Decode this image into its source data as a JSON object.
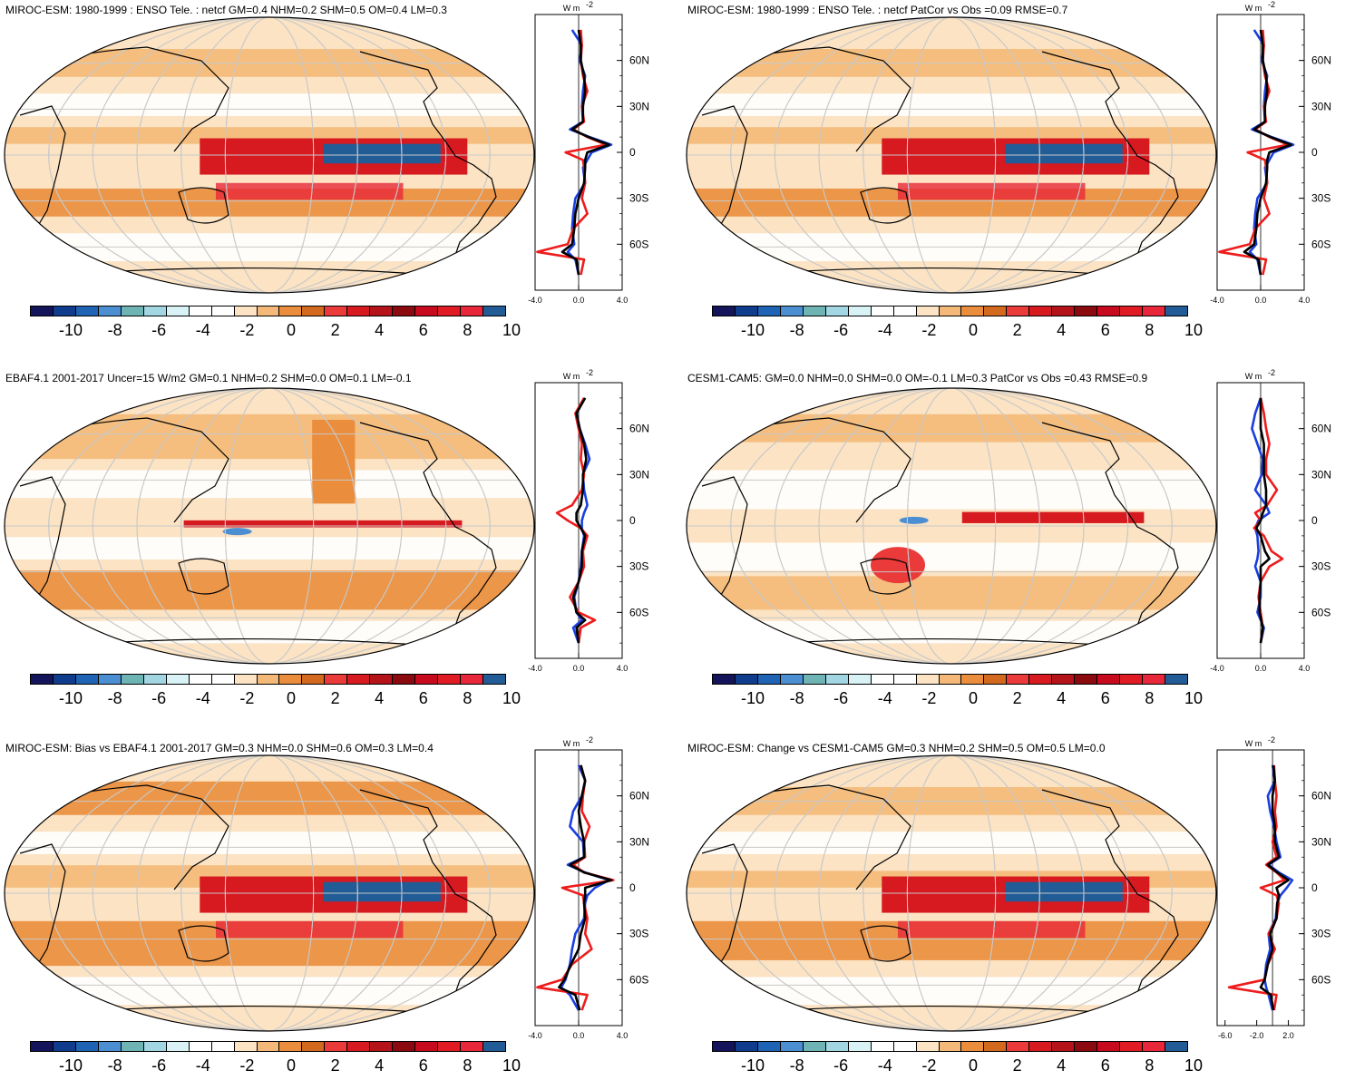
{
  "palette": [
    "#14145a",
    "#0f3c8c",
    "#1f64b4",
    "#4b8fd2",
    "#6fb4b4",
    "#a2d6e2",
    "#d8f2f6",
    "#ffffff",
    "#ffffff",
    "#fbe3c4",
    "#f4b978",
    "#ea8d3c",
    "#d2691e",
    "#ea3a3a",
    "#d71920",
    "#b5131a",
    "#8b0a10",
    "#c80a1e",
    "#e01b24",
    "#e8283a",
    "#215c96"
  ],
  "colorbar_labels": [
    "-10",
    "-8",
    "-6",
    "-4",
    "-2",
    "0",
    "2",
    "4",
    "6",
    "8",
    "10"
  ],
  "series_colors": {
    "red": "#ee1c1c",
    "blue": "#1a3fe0",
    "black": "#000000"
  },
  "chart_data": [
    {
      "type": "heatmap",
      "title": "MIROC-ESM: 1980-1999 : ENSO Tele. : netcf GM=0.4 NHM=0.2 SHM=0.5 OM=0.4 LM=0.3",
      "zonal_profile": {
        "units_label": "W m",
        "units_sup": "-2",
        "xticks": [
          "-4.0",
          "0.0",
          "4.0"
        ],
        "xlim": [
          -4,
          4
        ],
        "yticks": [
          "60N",
          "30N",
          "0",
          "30S",
          "60S"
        ],
        "lat": [
          80,
          70,
          60,
          50,
          40,
          30,
          20,
          15,
          10,
          5,
          0,
          -5,
          -10,
          -20,
          -30,
          -40,
          -50,
          -60,
          -65,
          -70,
          -80
        ],
        "red": [
          0.2,
          0.3,
          0.2,
          0.4,
          0.8,
          0.3,
          0.5,
          -0.5,
          0.8,
          2.5,
          -1.2,
          0.4,
          0.5,
          0.6,
          0.3,
          0.8,
          -0.5,
          -1.0,
          -3.8,
          0.5,
          0.2
        ],
        "blue": [
          -0.6,
          0.3,
          0.1,
          0.6,
          0.4,
          0.3,
          0.4,
          -0.8,
          1.0,
          3.0,
          1.2,
          0.8,
          0.4,
          0.6,
          -0.3,
          -0.5,
          -0.6,
          -0.4,
          -1.0,
          -0.3,
          0.0
        ],
        "black": [
          0.0,
          0.2,
          0.2,
          0.5,
          0.6,
          0.4,
          0.4,
          -0.6,
          0.9,
          2.8,
          0.8,
          0.6,
          0.6,
          0.5,
          0.0,
          -0.3,
          -0.4,
          -0.6,
          -1.5,
          -0.2,
          0.0
        ]
      },
      "colorbar_labels": [
        "-10",
        "-8",
        "-6",
        "-4",
        "-2",
        "0",
        "2",
        "4",
        "6",
        "8",
        "10"
      ]
    },
    {
      "type": "heatmap",
      "title": "MIROC-ESM: 1980-1999 : ENSO Tele. : netcf PatCor vs Obs =0.09 RMSE=0.7",
      "zonal_profile": {
        "units_label": "W m",
        "units_sup": "-2",
        "xticks": [
          "-4.0",
          "0.0",
          "4.0"
        ],
        "xlim": [
          -4,
          4
        ],
        "yticks": [
          "60N",
          "30N",
          "0",
          "30S",
          "60S"
        ],
        "lat": [
          80,
          70,
          60,
          50,
          40,
          30,
          20,
          15,
          10,
          5,
          0,
          -5,
          -10,
          -20,
          -30,
          -40,
          -50,
          -60,
          -65,
          -70,
          -80
        ],
        "red": [
          0.2,
          0.3,
          0.2,
          0.4,
          0.8,
          0.3,
          0.5,
          -0.5,
          0.8,
          2.5,
          -1.2,
          0.4,
          0.5,
          0.6,
          0.3,
          0.8,
          -0.5,
          -1.0,
          -3.8,
          0.5,
          0.2
        ],
        "blue": [
          -0.6,
          0.3,
          0.1,
          0.6,
          0.4,
          0.3,
          0.4,
          -0.8,
          1.0,
          3.0,
          1.2,
          0.8,
          0.4,
          0.6,
          -0.3,
          -0.5,
          -0.6,
          -0.4,
          -1.0,
          -0.3,
          0.0
        ],
        "black": [
          0.0,
          0.2,
          0.2,
          0.5,
          0.6,
          0.4,
          0.4,
          -0.6,
          0.9,
          2.8,
          0.8,
          0.6,
          0.6,
          0.5,
          0.0,
          -0.3,
          -0.4,
          -0.6,
          -1.5,
          -0.2,
          0.0
        ]
      },
      "colorbar_labels": [
        "-10",
        "-8",
        "-6",
        "-4",
        "-2",
        "0",
        "2",
        "4",
        "6",
        "8",
        "10"
      ]
    },
    {
      "type": "heatmap",
      "title": "EBAF4.1 2001-2017 Uncer=15 W/m2 GM=0.1 NHM=0.2 SHM=0.0 OM=0.1 LM=-0.1",
      "zonal_profile": {
        "units_label": "W m",
        "units_sup": "-2",
        "xticks": [
          "-4.0",
          "0.0",
          "4.0"
        ],
        "xlim": [
          -4,
          4
        ],
        "yticks": [
          "60N",
          "30N",
          "0",
          "30S",
          "60S"
        ],
        "lat": [
          80,
          70,
          60,
          50,
          40,
          30,
          20,
          10,
          5,
          0,
          -5,
          -10,
          -20,
          -30,
          -40,
          -50,
          -60,
          -65,
          -70,
          -80
        ],
        "red": [
          0.5,
          -0.3,
          0.0,
          0.3,
          0.2,
          0.5,
          0.3,
          -0.6,
          -2.0,
          -1.0,
          0.2,
          0.8,
          0.4,
          0.5,
          0.0,
          -0.8,
          0.0,
          1.5,
          0.2,
          0.0
        ],
        "blue": [
          0.5,
          -0.2,
          0.1,
          0.6,
          1.0,
          0.4,
          0.5,
          0.8,
          0.5,
          0.3,
          0.3,
          0.5,
          0.3,
          0.2,
          0.0,
          -0.4,
          -0.2,
          0.3,
          -0.5,
          0.0
        ],
        "black": [
          0.6,
          -0.2,
          0.1,
          0.5,
          0.7,
          0.4,
          0.4,
          0.2,
          -0.2,
          -0.2,
          0.2,
          0.6,
          0.3,
          0.3,
          0.0,
          -0.5,
          -0.2,
          0.6,
          -0.2,
          0.0
        ]
      },
      "colorbar_labels": [
        "-10",
        "-8",
        "-6",
        "-4",
        "-2",
        "0",
        "2",
        "4",
        "6",
        "8",
        "10"
      ]
    },
    {
      "type": "heatmap",
      "title": "CESM1-CAM5: GM=0.0 NHM=0.0 SHM=0.0 OM=-0.1 LM=0.3 PatCor vs Obs =0.43 RMSE=0.9",
      "zonal_profile": {
        "units_label": "W m",
        "units_sup": "-2",
        "xticks": [
          "-4.0",
          "0.0",
          "4.0"
        ],
        "xlim": [
          -4,
          4
        ],
        "yticks": [
          "60N",
          "30N",
          "0",
          "30S",
          "60S"
        ],
        "lat": [
          80,
          70,
          60,
          50,
          40,
          30,
          20,
          10,
          5,
          0,
          -5,
          -10,
          -20,
          -25,
          -30,
          -40,
          -50,
          -60,
          -70,
          -80
        ],
        "red": [
          0.0,
          0.3,
          0.5,
          0.8,
          0.5,
          0.5,
          1.5,
          0.6,
          -0.5,
          0.0,
          -0.6,
          0.3,
          1.0,
          2.0,
          0.8,
          0.0,
          -0.2,
          0.0,
          0.2,
          0.0
        ],
        "blue": [
          0.0,
          -0.5,
          -0.8,
          -0.3,
          0.2,
          0.1,
          -0.5,
          0.5,
          0.8,
          -0.2,
          -0.5,
          -0.3,
          -0.2,
          -0.3,
          -0.5,
          0.0,
          0.0,
          -0.3,
          0.3,
          0.0
        ],
        "black": [
          0.0,
          0.0,
          0.0,
          0.3,
          0.3,
          0.3,
          0.5,
          0.5,
          0.2,
          0.0,
          -0.4,
          0.0,
          0.4,
          0.8,
          0.0,
          0.0,
          -0.1,
          -0.1,
          0.2,
          0.0
        ]
      },
      "colorbar_labels": [
        "-10",
        "-8",
        "-6",
        "-4",
        "-2",
        "0",
        "2",
        "4",
        "6",
        "8",
        "10"
      ]
    },
    {
      "type": "heatmap",
      "title": "MIROC-ESM: Bias vs EBAF4.1 2001-2017 GM=0.3 NHM=0.0 SHM=0.6 OM=0.3 LM=0.4",
      "zonal_profile": {
        "units_label": "W m",
        "units_sup": "-2",
        "xticks": [
          "-4.0",
          "0.0",
          "4.0"
        ],
        "xlim": [
          -4,
          4
        ],
        "yticks": [
          "60N",
          "30N",
          "0",
          "30S",
          "60S"
        ],
        "lat": [
          80,
          70,
          60,
          50,
          40,
          30,
          20,
          15,
          10,
          5,
          0,
          -5,
          -10,
          -20,
          -30,
          -40,
          -50,
          -60,
          -65,
          -70,
          -80
        ],
        "red": [
          0.2,
          0.6,
          0.4,
          0.3,
          1.0,
          0.5,
          0.6,
          -0.5,
          0.5,
          3.2,
          -1.5,
          0.4,
          0.5,
          0.8,
          0.6,
          1.2,
          -0.6,
          -1.5,
          -3.8,
          0.8,
          0.3
        ],
        "blue": [
          0.0,
          0.6,
          0.3,
          -0.5,
          -0.8,
          0.4,
          0.5,
          -1.0,
          0.6,
          2.8,
          1.5,
          0.8,
          0.6,
          0.5,
          -0.3,
          -0.6,
          -0.8,
          -1.2,
          -1.6,
          -0.8,
          0.0
        ],
        "black": [
          0.2,
          0.6,
          0.3,
          0.0,
          0.2,
          0.5,
          0.5,
          -0.8,
          0.5,
          3.0,
          0.6,
          0.6,
          0.5,
          0.6,
          0.2,
          0.0,
          -0.7,
          -1.3,
          -1.8,
          -0.3,
          0.1
        ]
      },
      "colorbar_labels": [
        "-10",
        "-8",
        "-6",
        "-4",
        "-2",
        "0",
        "2",
        "4",
        "6",
        "8",
        "10"
      ]
    },
    {
      "type": "heatmap",
      "title": "MIROC-ESM: Change vs CESM1-CAM5 GM=0.3 NHM=0.2 SHM=0.5 OM=0.5 LM=0.0",
      "zonal_profile": {
        "units_label": "W m",
        "units_sup": "-2",
        "xticks": [
          "-6.0",
          "-2.0",
          "2.0"
        ],
        "xlim": [
          -7,
          4
        ],
        "yticks": [
          "60N",
          "30N",
          "0",
          "30S",
          "60S"
        ],
        "lat": [
          80,
          70,
          60,
          50,
          40,
          30,
          20,
          15,
          10,
          5,
          0,
          -5,
          -10,
          -20,
          -30,
          -40,
          -50,
          -60,
          -65,
          -70,
          -80
        ],
        "red": [
          0.2,
          0.3,
          0.5,
          0.3,
          0.5,
          0.0,
          0.5,
          -0.8,
          0.5,
          1.5,
          -1.5,
          0.5,
          0.8,
          0.5,
          -0.5,
          0.3,
          -0.6,
          -1.0,
          -5.5,
          0.5,
          0.2
        ],
        "blue": [
          0.0,
          0.3,
          -0.6,
          -0.3,
          0.2,
          0.5,
          1.0,
          -0.5,
          0.8,
          2.5,
          1.8,
          1.0,
          0.6,
          0.4,
          -0.5,
          -0.3,
          -0.8,
          -1.0,
          -0.8,
          -0.5,
          0.0
        ],
        "black": [
          0.1,
          0.3,
          0.0,
          0.0,
          0.3,
          0.3,
          0.8,
          -0.6,
          0.6,
          2.0,
          0.5,
          0.8,
          0.6,
          0.5,
          -0.3,
          0.0,
          -0.6,
          -1.0,
          -1.5,
          -0.2,
          0.1
        ]
      },
      "colorbar_labels": [
        "-10",
        "-8",
        "-6",
        "-4",
        "-2",
        "0",
        "2",
        "4",
        "6",
        "8",
        "10"
      ]
    }
  ]
}
